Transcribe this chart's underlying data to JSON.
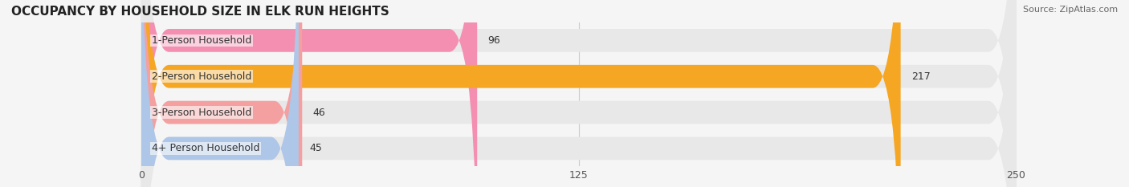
{
  "title": "OCCUPANCY BY HOUSEHOLD SIZE IN ELK RUN HEIGHTS",
  "source": "Source: ZipAtlas.com",
  "categories": [
    "1-Person Household",
    "2-Person Household",
    "3-Person Household",
    "4+ Person Household"
  ],
  "values": [
    96,
    217,
    46,
    45
  ],
  "bar_colors": [
    "#f48fb1",
    "#f5a623",
    "#f4a0a0",
    "#aec6e8"
  ],
  "bar_bg_color": "#e8e8e8",
  "xlim": [
    0,
    250
  ],
  "xticks": [
    0,
    125,
    250
  ],
  "figsize": [
    14.06,
    2.33
  ],
  "dpi": 100,
  "title_fontsize": 11,
  "label_fontsize": 9,
  "tick_fontsize": 9,
  "value_fontsize": 9,
  "bg_color": "#f5f5f5",
  "row_bg_colors": [
    "#f0f0f0",
    "#f0f0f0",
    "#f0f0f0",
    "#f0f0f0"
  ]
}
